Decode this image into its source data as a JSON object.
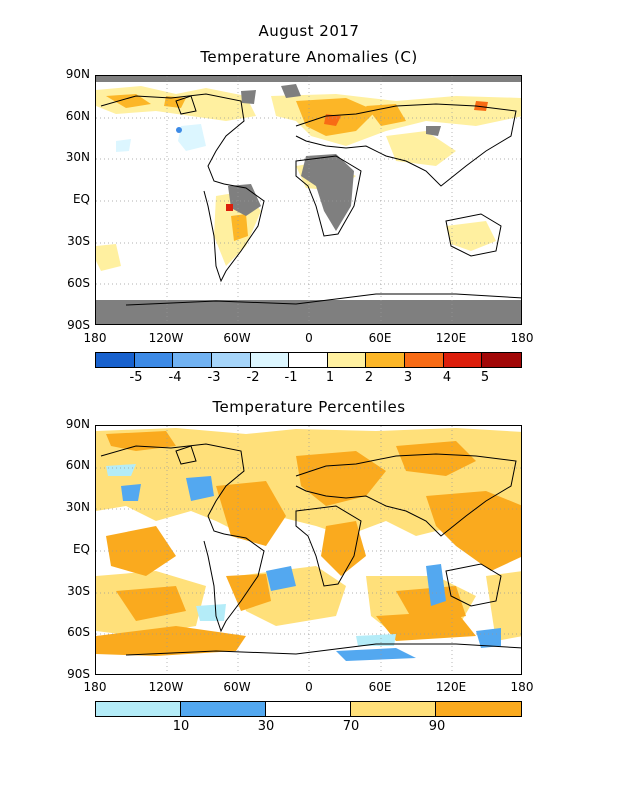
{
  "header": {
    "title_line1": "August 2017",
    "title_line2": "Temperature Anomalies (C)"
  },
  "panel2": {
    "title": "Temperature Percentiles"
  },
  "axes": {
    "lat_labels": [
      "90N",
      "60N",
      "30N",
      "EQ",
      "30S",
      "60S",
      "90S"
    ],
    "lon_labels": [
      "180",
      "120W",
      "60W",
      "0",
      "60E",
      "120E",
      "180"
    ]
  },
  "anomaly_legend": {
    "labels": [
      "-5",
      "-4",
      "-3",
      "-2",
      "-1",
      "1",
      "2",
      "3",
      "4",
      "5"
    ],
    "colors": [
      "#1861cd",
      "#3c8ae6",
      "#71b2f2",
      "#a6d5fa",
      "#dcf6ff",
      "#ffffff",
      "#fff0a0",
      "#fcb627",
      "#f86b15",
      "#dc1e0b",
      "#a10707"
    ]
  },
  "percentile_legend": {
    "labels": [
      "10",
      "30",
      "70",
      "90"
    ],
    "colors": [
      "#b4ecf8",
      "#53a8f0",
      "#ffffff",
      "#ffe07a",
      "#faaa1e"
    ]
  },
  "colors": {
    "land_outline": "#000000",
    "missing": "#7f7f7f",
    "grid": "#999999"
  }
}
